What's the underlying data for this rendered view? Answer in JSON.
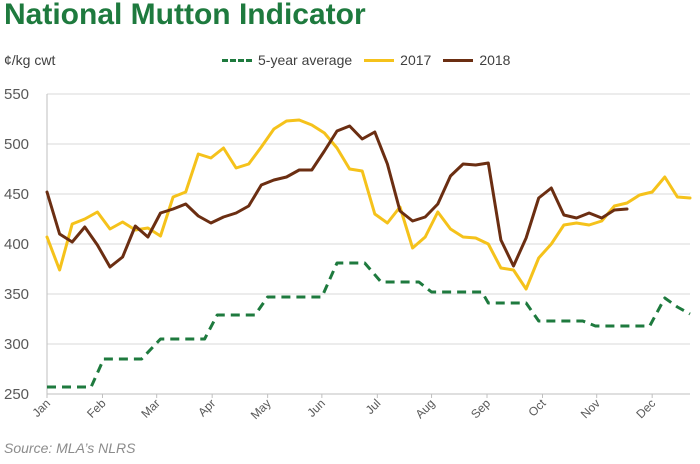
{
  "chart_data": {
    "type": "line",
    "title": "National Mutton Indicator",
    "ylabel": "¢/kg cwt",
    "source": "Source: MLA’s NLRS",
    "ylim": [
      250,
      550
    ],
    "yticks": [
      250,
      300,
      350,
      400,
      450,
      500,
      550
    ],
    "xlim": [
      0,
      51
    ],
    "xtick_labels": [
      "Jan",
      "Feb",
      "Mar",
      "Apr",
      "May",
      "Jun",
      "Jul",
      "Aug",
      "Sep",
      "Oct",
      "Nov",
      "Dec"
    ],
    "xtick_weeks": [
      0,
      4.4,
      8.7,
      13.1,
      17.5,
      21.8,
      26.2,
      30.5,
      34.9,
      39.3,
      43.6,
      48.0
    ],
    "grid": "horizontal",
    "legend_position": "top",
    "series": [
      {
        "name": "5-year average",
        "color": "#1e7a3e",
        "style": "dashed",
        "step": true,
        "x": [
          0,
          3.5,
          4.5,
          7.5,
          9,
          12.5,
          13.5,
          16.5,
          17.5,
          21.8,
          23,
          25.2,
          26.5,
          29.5,
          30.5,
          34.5,
          35,
          38,
          39,
          42.5,
          43.5,
          47,
          47.8,
          49,
          50,
          51
        ],
        "y": [
          257,
          257,
          285,
          285,
          305,
          305,
          329,
          329,
          347,
          347,
          381,
          381,
          362,
          362,
          352,
          352,
          341,
          341,
          323,
          323,
          318,
          318,
          318,
          346,
          337,
          330
        ]
      },
      {
        "name": "2017",
        "color": "#f5c21b",
        "style": "solid",
        "x": [
          0,
          1,
          2,
          3,
          4,
          5,
          6,
          7,
          8,
          9,
          10,
          11,
          12,
          13,
          14,
          15,
          16,
          17,
          18,
          19,
          20,
          21,
          22,
          23,
          24,
          25,
          26,
          27,
          28,
          29,
          30,
          31,
          32,
          33,
          34,
          35,
          36,
          37,
          38,
          39,
          40,
          41,
          42,
          43,
          44,
          45,
          46,
          47,
          48,
          49,
          50,
          51
        ],
        "y": [
          407,
          374,
          420,
          425,
          432,
          415,
          422,
          414,
          416,
          408,
          447,
          452,
          490,
          486,
          496,
          476,
          480,
          497,
          515,
          523,
          524,
          519,
          511,
          496,
          475,
          473,
          430,
          421,
          437,
          396,
          407,
          432,
          415,
          407,
          406,
          400,
          376,
          374,
          355,
          386,
          400,
          419,
          421,
          419,
          423,
          438,
          441,
          449,
          452,
          467,
          447,
          446
        ]
      },
      {
        "name": "2018",
        "color": "#6b2e12",
        "style": "solid",
        "x": [
          0,
          1,
          2,
          3,
          4,
          5,
          6,
          7,
          8,
          9,
          10,
          11,
          12,
          13,
          14,
          15,
          16,
          17,
          18,
          19,
          20,
          21,
          22,
          23,
          24,
          25,
          26,
          27,
          28,
          29,
          30,
          31,
          32,
          33,
          34,
          35,
          36,
          37,
          38,
          39,
          40,
          41,
          42,
          43,
          44,
          45,
          46
        ],
        "y": [
          452,
          410,
          402,
          417,
          399,
          377,
          387,
          418,
          407,
          431,
          435,
          440,
          428,
          421,
          427,
          431,
          438,
          459,
          464,
          467,
          474,
          474,
          493,
          513,
          518,
          505,
          512,
          480,
          433,
          423,
          427,
          440,
          468,
          480,
          479,
          481,
          404,
          378,
          406,
          446,
          456,
          429,
          426,
          431,
          426,
          434,
          435
        ]
      }
    ]
  }
}
